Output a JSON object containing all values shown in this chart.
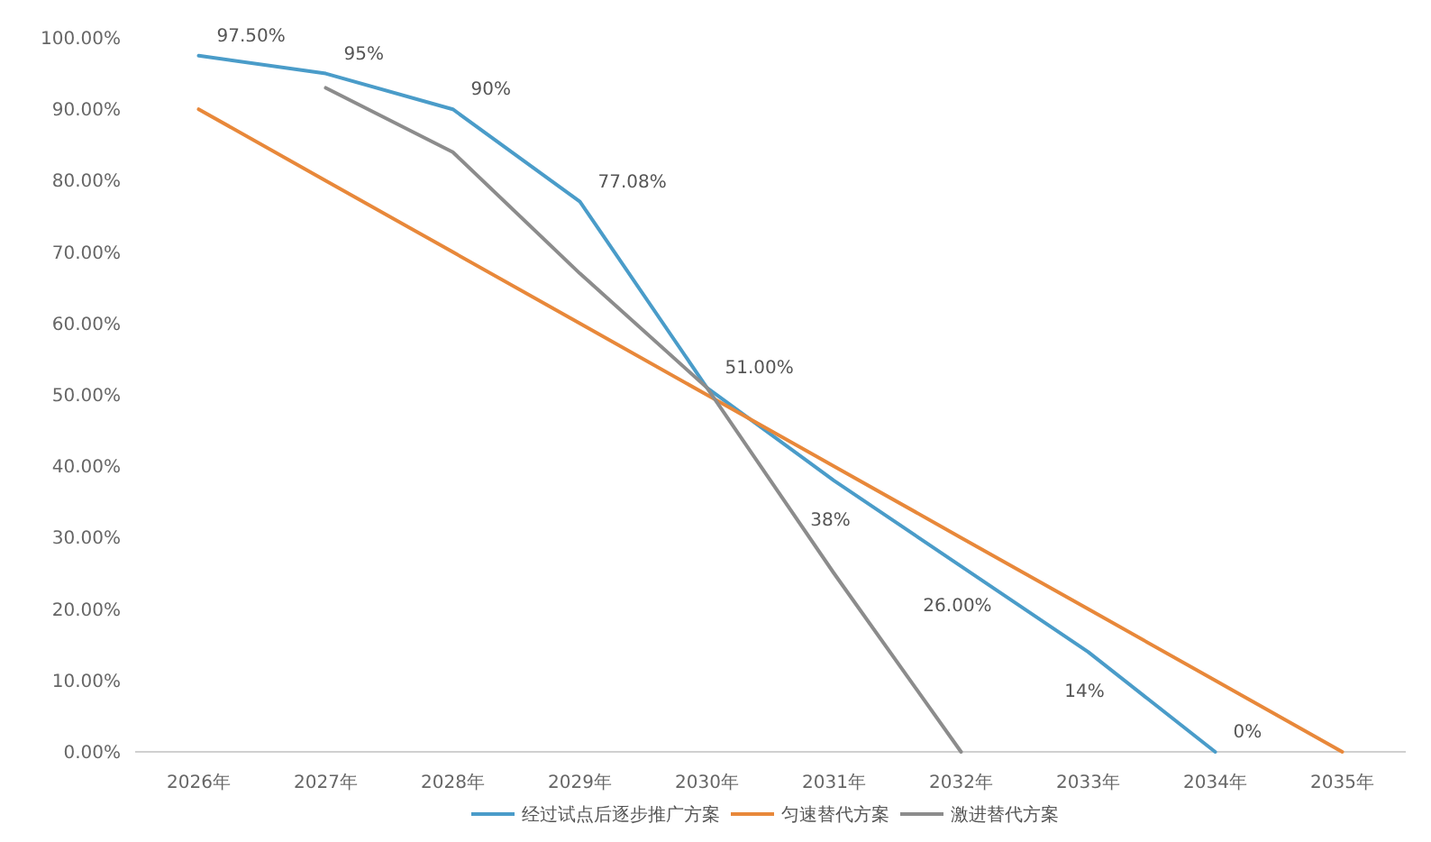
{
  "chart_data": {
    "type": "line",
    "categories": [
      "2026年",
      "2027年",
      "2028年",
      "2029年",
      "2030年",
      "2031年",
      "2032年",
      "2033年",
      "2034年",
      "2035年"
    ],
    "series": [
      {
        "name": "经过试点后逐步推广方案",
        "color": "#4a9cc9",
        "values": [
          97.5,
          95,
          90,
          77.08,
          51,
          38,
          26,
          14,
          0,
          null
        ],
        "value_labels": [
          "97.50%",
          "95%",
          "90%",
          "77.08%",
          "51.00%",
          "38%",
          "26.00%",
          "14%",
          "0%",
          null
        ]
      },
      {
        "name": "匀速替代方案",
        "color": "#e8883a",
        "values": [
          90,
          80,
          70,
          60,
          50,
          40,
          30,
          20,
          10,
          0
        ]
      },
      {
        "name": "激进替代方案",
        "color": "#8c8c8c",
        "values": [
          null,
          93,
          84,
          67,
          51,
          25,
          0,
          null,
          null,
          null
        ]
      }
    ],
    "ylim": [
      0,
      100
    ],
    "yticks": [
      {
        "value": 0,
        "label": "0.00%"
      },
      {
        "value": 10,
        "label": "10.00%"
      },
      {
        "value": 20,
        "label": "20.00%"
      },
      {
        "value": 30,
        "label": "30.00%"
      },
      {
        "value": 40,
        "label": "40.00%"
      },
      {
        "value": 50,
        "label": "50.00%"
      },
      {
        "value": 60,
        "label": "60.00%"
      },
      {
        "value": 70,
        "label": "70.00%"
      },
      {
        "value": 80,
        "label": "80.00%"
      },
      {
        "value": 90,
        "label": "90.00%"
      },
      {
        "value": 100,
        "label": "100.00%"
      }
    ],
    "legend": "bottom",
    "marker": "none",
    "line_style": "solid"
  }
}
